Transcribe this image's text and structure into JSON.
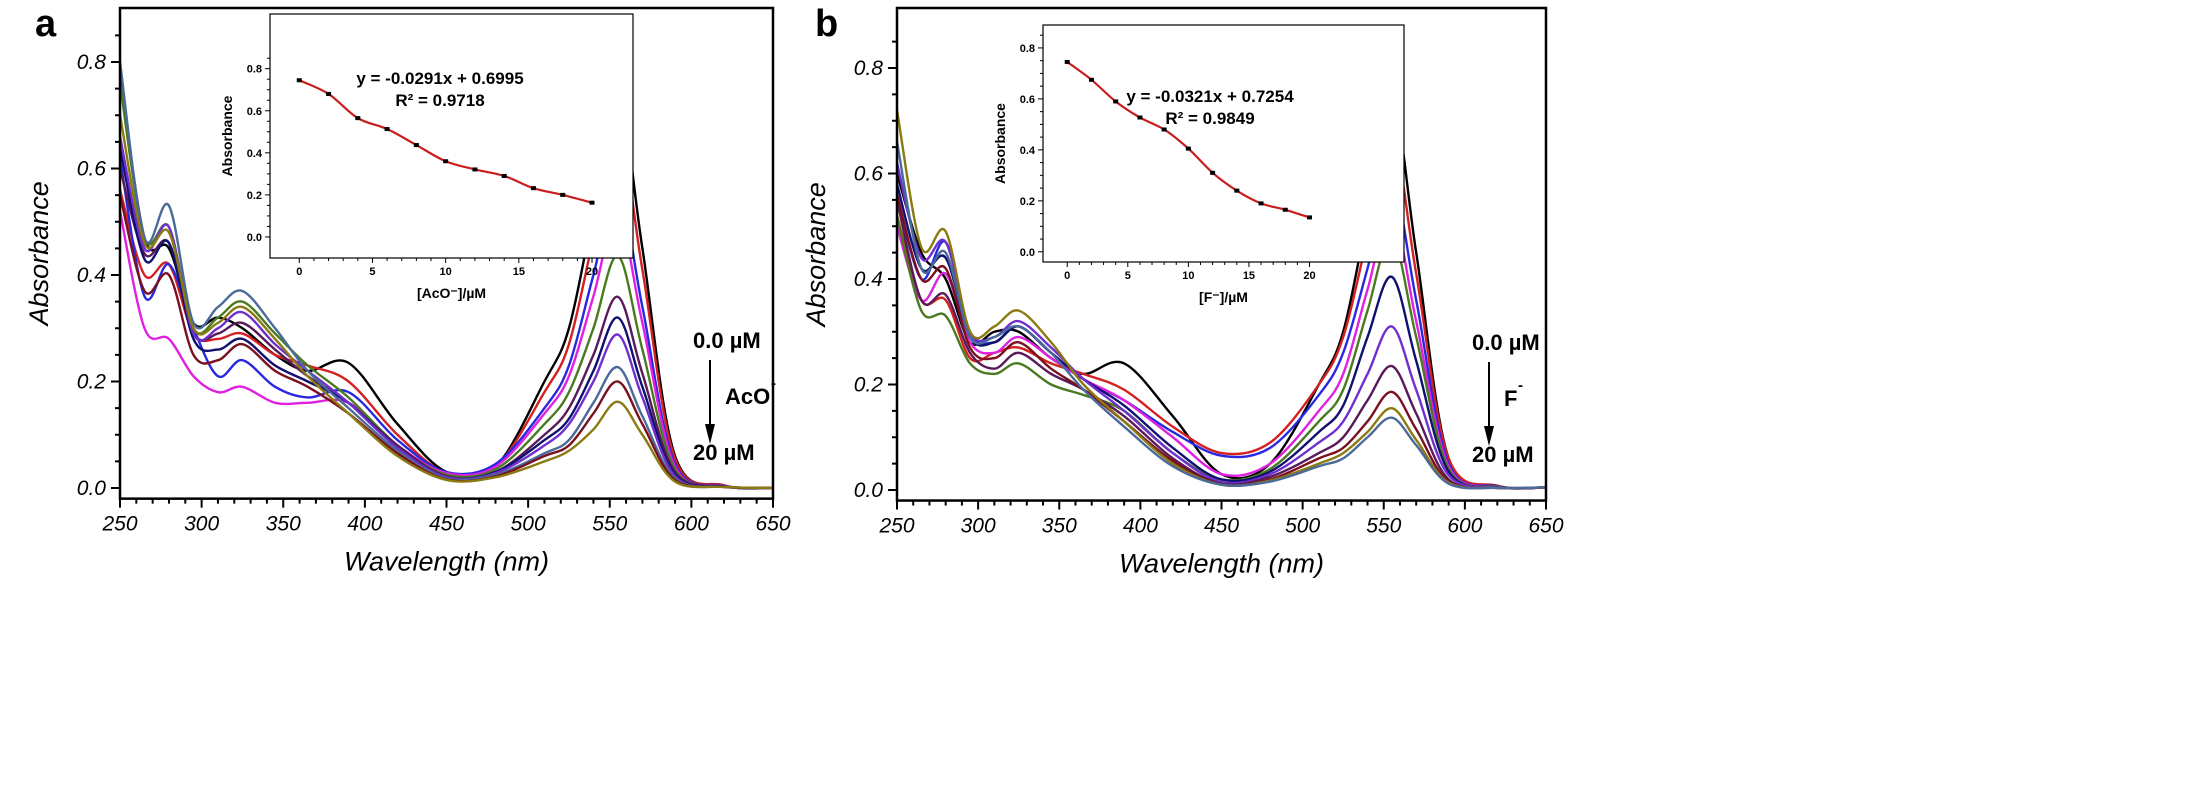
{
  "chart_data": [
    {
      "panel": "a",
      "type": "line",
      "xlabel": "Wavelength (nm)",
      "ylabel": "Absorbance",
      "xlim": [
        250,
        650
      ],
      "ylim": [
        -0.02,
        0.9
      ],
      "xticks": [
        250,
        300,
        350,
        400,
        450,
        500,
        550,
        600,
        650
      ],
      "yticks": [
        "0.0",
        "0.2",
        "0.4",
        "0.6",
        "0.8"
      ],
      "grid": false,
      "annotations": {
        "start": "0.0 µM",
        "analyte": "AcO",
        "analyte_sup": "-",
        "end": "20 µM",
        "arrow_at_nm": 555
      },
      "x": [
        250,
        265,
        280,
        295,
        310,
        325,
        345,
        365,
        390,
        420,
        450,
        480,
        510,
        525,
        540,
        555,
        570,
        590,
        620,
        650
      ],
      "series": [
        {
          "color": "#000000",
          "values": [
            0.78,
            0.47,
            0.45,
            0.31,
            0.32,
            0.3,
            0.25,
            0.22,
            0.235,
            0.12,
            0.03,
            0.04,
            0.2,
            0.3,
            0.52,
            0.745,
            0.45,
            0.06,
            0.005,
            0.0
          ]
        },
        {
          "color": "#d42020",
          "values": [
            0.56,
            0.4,
            0.42,
            0.29,
            0.28,
            0.29,
            0.25,
            0.23,
            0.2,
            0.1,
            0.028,
            0.04,
            0.18,
            0.27,
            0.47,
            0.677,
            0.41,
            0.055,
            0.005,
            0.0
          ]
        },
        {
          "color": "#2828e0",
          "values": [
            0.62,
            0.36,
            0.42,
            0.3,
            0.21,
            0.24,
            0.19,
            0.17,
            0.18,
            0.09,
            0.03,
            0.045,
            0.15,
            0.23,
            0.4,
            0.564,
            0.34,
            0.045,
            0.004,
            0.0
          ]
        },
        {
          "color": "#e020e0",
          "values": [
            0.52,
            0.3,
            0.28,
            0.21,
            0.18,
            0.19,
            0.16,
            0.16,
            0.16,
            0.08,
            0.028,
            0.04,
            0.14,
            0.21,
            0.36,
            0.513,
            0.31,
            0.04,
            0.004,
            0.0
          ]
        },
        {
          "color": "#4a7a20",
          "values": [
            0.76,
            0.47,
            0.49,
            0.3,
            0.32,
            0.35,
            0.29,
            0.23,
            0.17,
            0.08,
            0.025,
            0.035,
            0.12,
            0.18,
            0.3,
            0.436,
            0.26,
            0.035,
            0.003,
            0.0
          ]
        },
        {
          "color": "#5a1a5a",
          "values": [
            0.6,
            0.44,
            0.46,
            0.29,
            0.29,
            0.31,
            0.26,
            0.21,
            0.16,
            0.08,
            0.022,
            0.03,
            0.1,
            0.15,
            0.25,
            0.359,
            0.215,
            0.03,
            0.003,
            0.0
          ]
        },
        {
          "color": "#101070",
          "values": [
            0.64,
            0.43,
            0.46,
            0.28,
            0.26,
            0.28,
            0.23,
            0.2,
            0.16,
            0.075,
            0.02,
            0.03,
            0.09,
            0.13,
            0.22,
            0.32,
            0.19,
            0.025,
            0.003,
            0.0
          ]
        },
        {
          "color": "#7030d0",
          "values": [
            0.66,
            0.45,
            0.49,
            0.29,
            0.3,
            0.33,
            0.27,
            0.22,
            0.16,
            0.075,
            0.02,
            0.028,
            0.08,
            0.12,
            0.2,
            0.288,
            0.17,
            0.022,
            0.002,
            0.0
          ]
        },
        {
          "color": "#4a6a9a",
          "values": [
            0.8,
            0.47,
            0.53,
            0.31,
            0.34,
            0.37,
            0.3,
            0.22,
            0.15,
            0.07,
            0.018,
            0.025,
            0.065,
            0.09,
            0.16,
            0.227,
            0.135,
            0.018,
            0.002,
            0.0
          ]
        },
        {
          "color": "#7a1020",
          "values": [
            0.55,
            0.37,
            0.4,
            0.25,
            0.24,
            0.27,
            0.22,
            0.19,
            0.14,
            0.065,
            0.016,
            0.022,
            0.06,
            0.08,
            0.14,
            0.2,
            0.12,
            0.015,
            0.002,
            0.0
          ]
        },
        {
          "color": "#8a7a10",
          "values": [
            0.7,
            0.46,
            0.48,
            0.3,
            0.31,
            0.34,
            0.28,
            0.21,
            0.14,
            0.06,
            0.015,
            0.02,
            0.05,
            0.07,
            0.11,
            0.162,
            0.1,
            0.012,
            0.002,
            0.0
          ]
        }
      ],
      "inset": {
        "type": "line",
        "xlabel": "[AcO⁻]/µM",
        "ylabel": "Absorbance",
        "xlim": [
          -2,
          22.8
        ],
        "ylim": [
          -0.1,
          1.06
        ],
        "xticks": [
          0,
          5,
          10,
          15,
          20
        ],
        "yticks": [
          "0.0",
          "0.2",
          "0.4",
          "0.6",
          "0.8"
        ],
        "line_color": "#c81e1e",
        "equation": "y = -0.0291x + 0.6995",
        "r2": "R² = 0.9718",
        "x": [
          0,
          2,
          4,
          6,
          8,
          10,
          12,
          14,
          16,
          18,
          20
        ],
        "y": [
          0.745,
          0.68,
          0.565,
          0.513,
          0.437,
          0.36,
          0.321,
          0.29,
          0.232,
          0.2,
          0.163
        ]
      }
    },
    {
      "panel": "b",
      "type": "line",
      "xlabel": "Wavelength (nm)",
      "ylabel": "Absorbance",
      "xlim": [
        250,
        650
      ],
      "ylim": [
        -0.02,
        0.9
      ],
      "xticks": [
        250,
        300,
        350,
        400,
        450,
        500,
        550,
        600,
        650
      ],
      "yticks": [
        "0.0",
        "0.2",
        "0.4",
        "0.6",
        "0.8"
      ],
      "grid": false,
      "annotations": {
        "start": "0.0 µM",
        "analyte": "F",
        "analyte_sup": "-",
        "end": "20 µM",
        "arrow_at_nm": 555
      },
      "x": [
        250,
        265,
        280,
        295,
        310,
        325,
        345,
        365,
        390,
        420,
        450,
        480,
        510,
        525,
        540,
        555,
        570,
        590,
        620,
        650
      ],
      "series": [
        {
          "color": "#000000",
          "values": [
            0.6,
            0.45,
            0.4,
            0.28,
            0.3,
            0.3,
            0.25,
            0.22,
            0.24,
            0.14,
            0.03,
            0.05,
            0.2,
            0.3,
            0.52,
            0.747,
            0.45,
            0.06,
            0.008,
            0.005
          ]
        },
        {
          "color": "#d42020",
          "values": [
            0.52,
            0.36,
            0.36,
            0.25,
            0.26,
            0.27,
            0.24,
            0.22,
            0.19,
            0.12,
            0.07,
            0.09,
            0.2,
            0.29,
            0.48,
            0.675,
            0.41,
            0.06,
            0.008,
            0.005
          ]
        },
        {
          "color": "#2828e0",
          "values": [
            0.56,
            0.4,
            0.47,
            0.3,
            0.28,
            0.31,
            0.26,
            0.21,
            0.17,
            0.11,
            0.065,
            0.08,
            0.18,
            0.26,
            0.42,
            0.588,
            0.36,
            0.05,
            0.007,
            0.005
          ]
        },
        {
          "color": "#e020e0",
          "values": [
            0.5,
            0.36,
            0.41,
            0.28,
            0.26,
            0.29,
            0.25,
            0.21,
            0.17,
            0.1,
            0.03,
            0.05,
            0.15,
            0.22,
            0.38,
            0.529,
            0.32,
            0.045,
            0.006,
            0.005
          ]
        },
        {
          "color": "#4a7a20",
          "values": [
            0.52,
            0.34,
            0.33,
            0.24,
            0.22,
            0.24,
            0.2,
            0.18,
            0.15,
            0.07,
            0.02,
            0.04,
            0.13,
            0.19,
            0.34,
            0.48,
            0.29,
            0.04,
            0.006,
            0.005
          ]
        },
        {
          "color": "#101070",
          "values": [
            0.58,
            0.42,
            0.44,
            0.29,
            0.28,
            0.31,
            0.26,
            0.21,
            0.16,
            0.08,
            0.02,
            0.035,
            0.11,
            0.16,
            0.29,
            0.404,
            0.245,
            0.035,
            0.005,
            0.005
          ]
        },
        {
          "color": "#7030d0",
          "values": [
            0.62,
            0.44,
            0.47,
            0.3,
            0.29,
            0.32,
            0.27,
            0.21,
            0.15,
            0.07,
            0.015,
            0.03,
            0.09,
            0.13,
            0.22,
            0.31,
            0.19,
            0.028,
            0.005,
            0.005
          ]
        },
        {
          "color": "#5a1a5a",
          "values": [
            0.55,
            0.36,
            0.37,
            0.26,
            0.23,
            0.26,
            0.22,
            0.19,
            0.14,
            0.06,
            0.012,
            0.025,
            0.07,
            0.1,
            0.17,
            0.235,
            0.145,
            0.02,
            0.004,
            0.005
          ]
        },
        {
          "color": "#7a1020",
          "values": [
            0.56,
            0.4,
            0.42,
            0.27,
            0.25,
            0.28,
            0.23,
            0.19,
            0.13,
            0.055,
            0.01,
            0.02,
            0.06,
            0.08,
            0.13,
            0.186,
            0.115,
            0.016,
            0.004,
            0.005
          ]
        },
        {
          "color": "#8a7a10",
          "values": [
            0.72,
            0.46,
            0.49,
            0.3,
            0.31,
            0.34,
            0.28,
            0.2,
            0.13,
            0.05,
            0.01,
            0.018,
            0.05,
            0.07,
            0.11,
            0.155,
            0.095,
            0.014,
            0.004,
            0.005
          ]
        },
        {
          "color": "#4a6a9a",
          "values": [
            0.66,
            0.42,
            0.45,
            0.29,
            0.29,
            0.31,
            0.26,
            0.19,
            0.12,
            0.045,
            0.01,
            0.016,
            0.045,
            0.06,
            0.1,
            0.137,
            0.085,
            0.012,
            0.004,
            0.005
          ]
        }
      ],
      "inset": {
        "type": "line",
        "xlabel": "[F⁻]/µM",
        "ylabel": "Absorbance",
        "xlim": [
          -2,
          27.8
        ],
        "ylim": [
          -0.04,
          0.89
        ],
        "xticks": [
          0,
          5,
          10,
          15,
          20
        ],
        "yticks": [
          "0.0",
          "0.2",
          "0.4",
          "0.6",
          "0.8"
        ],
        "line_color": "#c81e1e",
        "equation": "y = -0.0321x + 0.7254",
        "r2": "R² = 0.9849",
        "x": [
          0,
          2,
          4,
          6,
          8,
          10,
          12,
          14,
          16,
          18,
          20
        ],
        "y": [
          0.745,
          0.675,
          0.59,
          0.527,
          0.48,
          0.405,
          0.31,
          0.24,
          0.19,
          0.165,
          0.135
        ]
      }
    }
  ]
}
